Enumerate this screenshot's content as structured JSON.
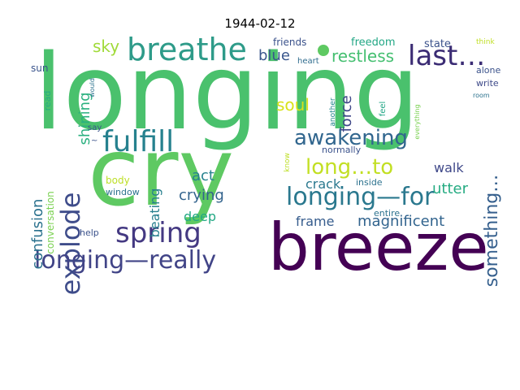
{
  "chart_data": {
    "type": "wordcloud",
    "title": "1944-02-12",
    "words": [
      {
        "text": "longing",
        "color": "#4ac16d"
      },
      {
        "text": "cry",
        "color": "#5ec962"
      },
      {
        "text": "breeze",
        "color": "#440154"
      },
      {
        "text": "breathe",
        "color": "#2e9b89"
      },
      {
        "text": "last…",
        "color": "#3b2c74"
      },
      {
        "text": "fulfill",
        "color": "#26818e"
      },
      {
        "text": "explode",
        "color": "#3e4c8a"
      },
      {
        "text": "spring",
        "color": "#443982"
      },
      {
        "text": "longing—really",
        "color": "#414487"
      },
      {
        "text": "longing—for",
        "color": "#2a788e"
      },
      {
        "text": "long…to",
        "color": "#c2df23"
      },
      {
        "text": "awakening",
        "color": "#31668e"
      },
      {
        "text": "something…",
        "color": "#355f8d"
      },
      {
        "text": "sky",
        "color": "#a0da39"
      },
      {
        "text": "blue",
        "color": "#39568c"
      },
      {
        "text": "restless",
        "color": "#44bf70"
      },
      {
        "text": "soul",
        "color": "#d8e219"
      },
      {
        "text": "force",
        "color": "#3f4788"
      },
      {
        "text": "shining",
        "color": "#2ab07f"
      },
      {
        "text": "crying",
        "color": "#33638d"
      },
      {
        "text": "act",
        "color": "#26828e"
      },
      {
        "text": "deep",
        "color": "#22a884"
      },
      {
        "text": "beating",
        "color": "#277f8e"
      },
      {
        "text": "confusion",
        "color": "#2c728e"
      },
      {
        "text": "crack",
        "color": "#2a788e"
      },
      {
        "text": "walk",
        "color": "#3f4889"
      },
      {
        "text": "utter",
        "color": "#25ab82"
      },
      {
        "text": "frame",
        "color": "#365c8d"
      },
      {
        "text": "magnificent",
        "color": "#32648e"
      },
      {
        "text": "conversation",
        "color": "#7ad151"
      },
      {
        "text": "body",
        "color": "#bddf26"
      },
      {
        "text": "window",
        "color": "#2c728e"
      },
      {
        "text": "help",
        "color": "#3b528b"
      },
      {
        "text": "friends",
        "color": "#3b528b"
      },
      {
        "text": "freedom",
        "color": "#22a785"
      },
      {
        "text": "state",
        "color": "#3b528b"
      },
      {
        "text": "think",
        "color": "#c0df25"
      },
      {
        "text": "heart",
        "color": "#2f6c8e"
      },
      {
        "text": "sun",
        "color": "#3a548c"
      },
      {
        "text": "read",
        "color": "#25ac82"
      },
      {
        "text": "would",
        "color": "#2c728e"
      },
      {
        "text": "say",
        "color": "#3b528b"
      },
      {
        "text": "another",
        "color": "#25858e"
      },
      {
        "text": "feel",
        "color": "#21a685"
      },
      {
        "text": "everything",
        "color": "#7ad151"
      },
      {
        "text": "alone",
        "color": "#3b528b"
      },
      {
        "text": "room",
        "color": "#2c728e"
      },
      {
        "text": "write",
        "color": "#3e4a89"
      },
      {
        "text": "normally",
        "color": "#3b528b"
      },
      {
        "text": "know",
        "color": "#bddf26"
      },
      {
        "text": "inside",
        "color": "#2c728e"
      },
      {
        "text": "entire",
        "color": "#2c728e"
      },
      {
        "text": "~",
        "color": "#3b528b"
      }
    ]
  }
}
